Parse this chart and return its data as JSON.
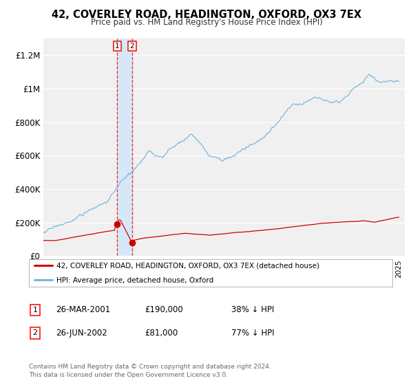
{
  "title": "42, COVERLEY ROAD, HEADINGTON, OXFORD, OX3 7EX",
  "subtitle": "Price paid vs. HM Land Registry's House Price Index (HPI)",
  "ylim": [
    0,
    1300000
  ],
  "yticks": [
    0,
    200000,
    400000,
    600000,
    800000,
    1000000,
    1200000
  ],
  "ytick_labels": [
    "£0",
    "£200K",
    "£400K",
    "£600K",
    "£800K",
    "£1M",
    "£1.2M"
  ],
  "background_color": "#ffffff",
  "plot_bg_color": "#f0f0f0",
  "grid_color": "#ffffff",
  "hpi_color": "#7ab8d9",
  "price_color": "#cc0000",
  "transaction1_date": 2001.23,
  "transaction1_price": 190000,
  "transaction2_date": 2002.49,
  "transaction2_price": 81000,
  "legend_property": "42, COVERLEY ROAD, HEADINGTON, OXFORD, OX3 7EX (detached house)",
  "legend_hpi": "HPI: Average price, detached house, Oxford",
  "footer1": "Contains HM Land Registry data © Crown copyright and database right 2024.",
  "footer2": "This data is licensed under the Open Government Licence v3.0.",
  "shade_color": "#d6e8f7",
  "xmin": 1995.0,
  "xmax": 2025.5,
  "table_rows": [
    {
      "num": "1",
      "date": "26-MAR-2001",
      "price": "£190,000",
      "pct": "38% ↓ HPI"
    },
    {
      "num": "2",
      "date": "26-JUN-2002",
      "price": "£81,000",
      "pct": "77% ↓ HPI"
    }
  ]
}
